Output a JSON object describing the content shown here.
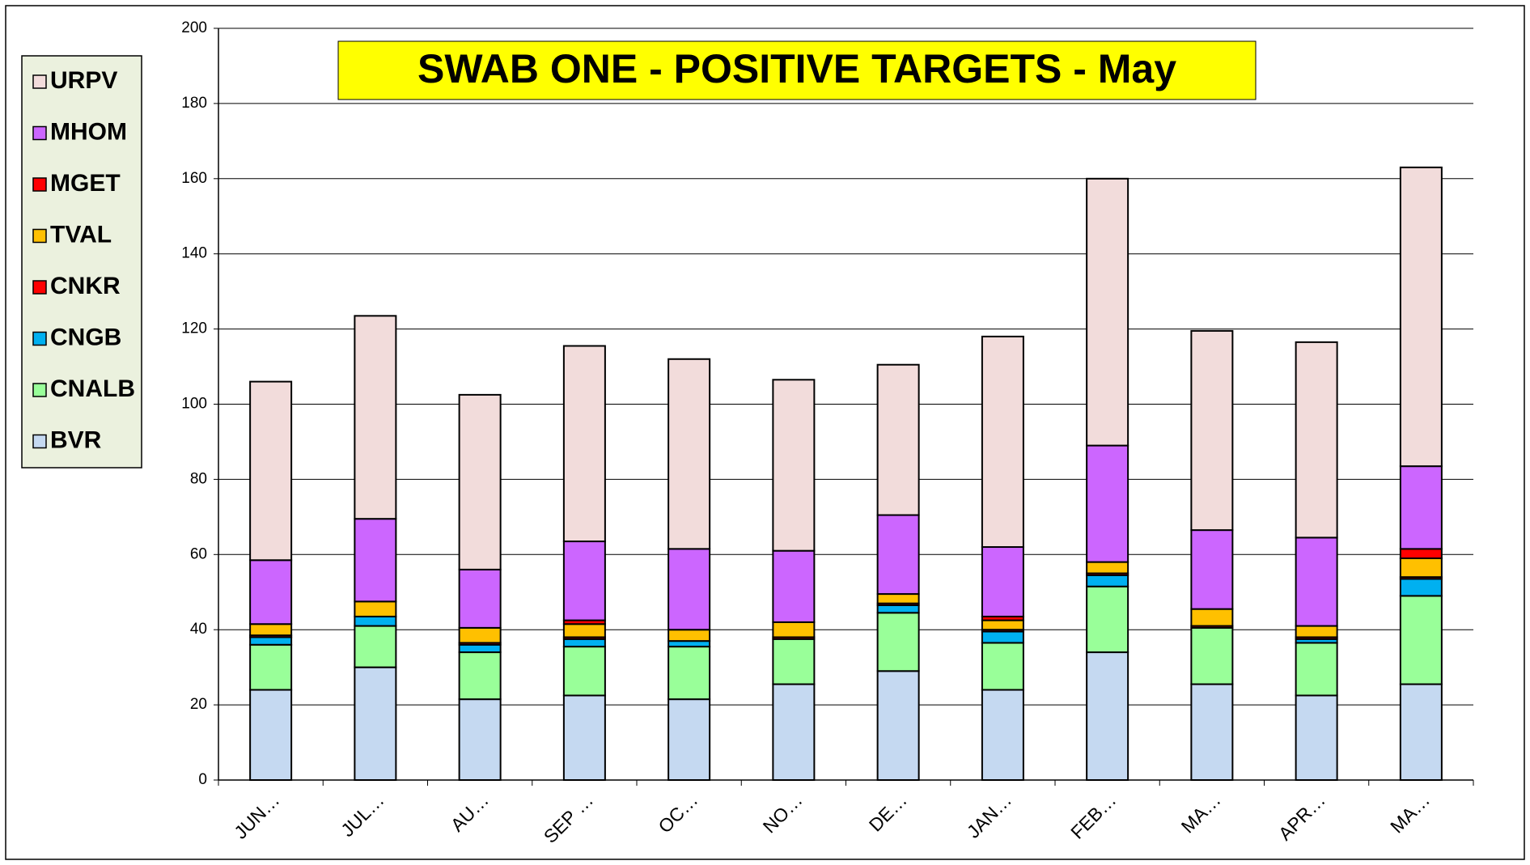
{
  "chart_data": {
    "type": "stacked_bar",
    "title": "SWAB ONE - POSITIVE TARGETS - May",
    "categories": [
      "JUN…",
      "JUL…",
      "AU…",
      "SEP …",
      "OC…",
      "NO…",
      "DE…",
      "JAN…",
      "FEB…",
      "MA…",
      "APR…",
      "MA…"
    ],
    "series": [
      {
        "name": "BVR",
        "color": "#c5d9f1",
        "values": [
          24,
          30,
          21.5,
          22.5,
          21.5,
          25.5,
          29,
          24,
          34,
          25.5,
          22.5,
          25.5
        ]
      },
      {
        "name": "CNALB",
        "color": "#99ff99",
        "values": [
          12,
          11,
          12.5,
          13,
          14,
          12,
          15.5,
          12.5,
          17.5,
          15,
          14,
          23.5
        ]
      },
      {
        "name": "CNGB",
        "color": "#00b0f0",
        "values": [
          2,
          2.5,
          2,
          2,
          1.5,
          0,
          2,
          3,
          3,
          0,
          1,
          4.5
        ]
      },
      {
        "name": "CNKR",
        "color": "#ff0000",
        "values": [
          0.5,
          0,
          0.5,
          0.5,
          0,
          0.5,
          0.5,
          0.5,
          0.5,
          0.5,
          0.5,
          0.5
        ]
      },
      {
        "name": "TVAL",
        "color": "#ffc000",
        "values": [
          3,
          4,
          4,
          3.5,
          3,
          4,
          2.5,
          2.5,
          3,
          4.5,
          3,
          5
        ]
      },
      {
        "name": "MGET",
        "color": "#ff0000",
        "values": [
          0,
          0,
          0,
          1,
          0,
          0,
          0,
          1,
          0,
          0,
          0,
          2.5
        ]
      },
      {
        "name": "MHOM",
        "color": "#cc66ff",
        "values": [
          17,
          22,
          15.5,
          21,
          21.5,
          19,
          21,
          18.5,
          31,
          21,
          23.5,
          22
        ]
      },
      {
        "name": "URPV",
        "color": "#f2dcdb",
        "values": [
          47.5,
          54,
          46.5,
          52,
          50.5,
          45.5,
          40,
          56,
          71,
          53,
          52,
          79.5
        ]
      }
    ],
    "ylim": [
      0,
      200
    ],
    "yticks": [
      0,
      20,
      40,
      60,
      80,
      100,
      120,
      140,
      160,
      180,
      200
    ],
    "grid": true,
    "legend": "left"
  }
}
